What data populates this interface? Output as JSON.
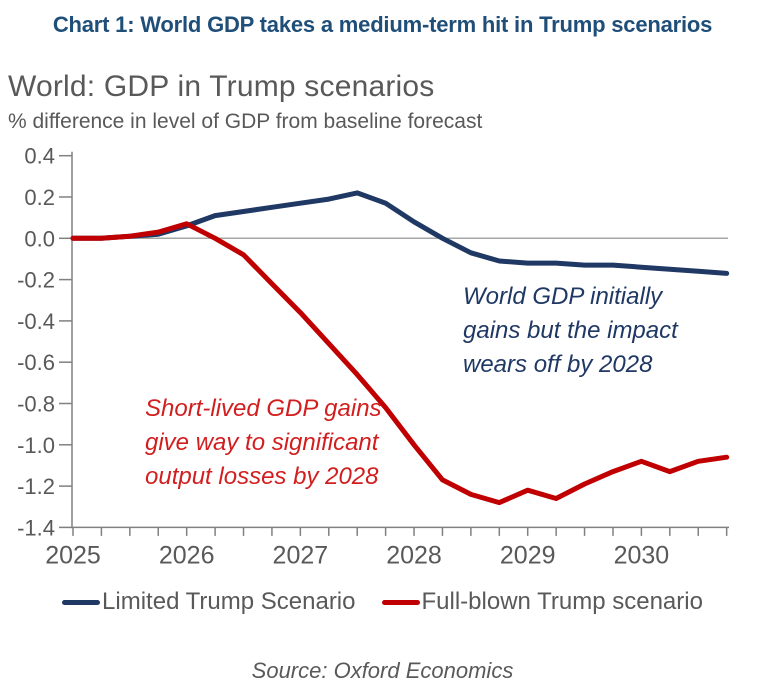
{
  "header": "Chart 1: World GDP takes a medium-term hit in Trump scenarios",
  "title": "World: GDP in Trump scenarios",
  "subtitle": "% difference in level of GDP from baseline forecast",
  "source": "Source: Oxford Economics",
  "annotations": {
    "blue": "World GDP initially\ngains but the impact\nwears off by 2028",
    "red": "Short-lived GDP gains\ngive way to significant\noutput losses by 2028"
  },
  "colors": {
    "header_blue": "#1F4E79",
    "navy_line": "#1F3864",
    "red_line": "#C00000",
    "navy_text": "#1F3864",
    "red_text": "#D21E1E",
    "gray_text": "#595959",
    "axis": "#808080",
    "gridline": "#A6A6A6"
  },
  "chart_data": {
    "type": "line",
    "title": "World: GDP in Trump scenarios",
    "ylabel": "% difference in level of GDP from baseline forecast",
    "x_start": 2025.0,
    "x_step": 0.25,
    "x_tick_years": [
      2025,
      2026,
      2027,
      2028,
      2029,
      2030
    ],
    "ylim": [
      -1.4,
      0.4
    ],
    "y_ticks": [
      0.4,
      0.2,
      0.0,
      -0.2,
      -0.4,
      -0.6,
      -0.8,
      -1.0,
      -1.2,
      -1.4
    ],
    "gridline_at": 0.0,
    "grid": "zero-line-only",
    "legend_position": "bottom-center",
    "series": [
      {
        "name": "Limited Trump Scenario",
        "color": "#1F3864",
        "values": [
          0.0,
          0.0,
          0.01,
          0.02,
          0.06,
          0.11,
          0.13,
          0.15,
          0.17,
          0.19,
          0.22,
          0.17,
          0.08,
          0.0,
          -0.07,
          -0.11,
          -0.12,
          -0.12,
          -0.13,
          -0.13,
          -0.14,
          -0.15,
          -0.16,
          -0.17
        ]
      },
      {
        "name": "Full-blown Trump scenario",
        "color": "#C00000",
        "values": [
          0.0,
          0.0,
          0.01,
          0.03,
          0.07,
          0.0,
          -0.08,
          -0.22,
          -0.36,
          -0.51,
          -0.66,
          -0.82,
          -1.0,
          -1.17,
          -1.24,
          -1.28,
          -1.22,
          -1.26,
          -1.19,
          -1.13,
          -1.08,
          -1.13,
          -1.08,
          -1.06
        ]
      }
    ]
  }
}
